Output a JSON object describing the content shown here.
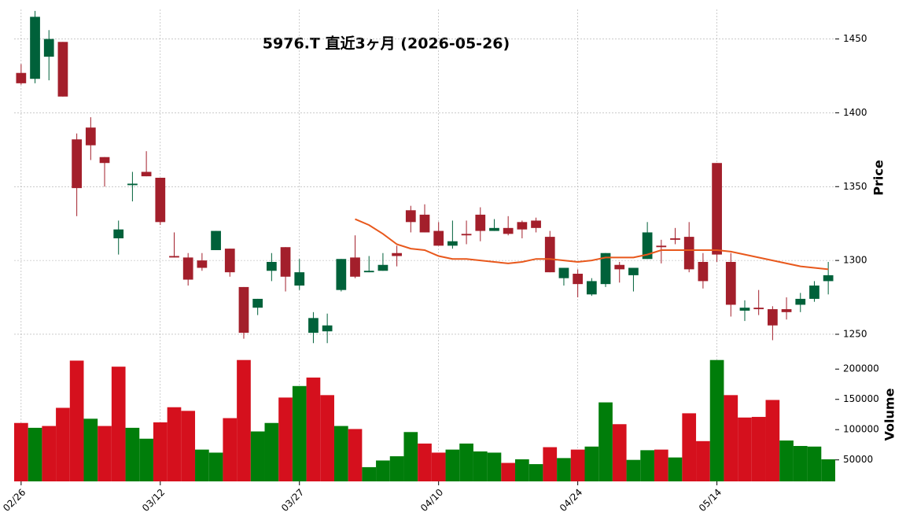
{
  "chart_data": {
    "type": "candlestick",
    "title": "5976.T  直近3ヶ月  (2026-05-26)",
    "y_label": "Price",
    "y2_label": "Volume",
    "categories": [
      "02/26",
      null,
      null,
      null,
      null,
      null,
      null,
      null,
      null,
      null,
      "03/12",
      null,
      null,
      null,
      null,
      null,
      null,
      null,
      null,
      null,
      "03/27",
      null,
      null,
      null,
      null,
      null,
      null,
      null,
      null,
      null,
      "04/10",
      null,
      null,
      null,
      null,
      null,
      null,
      null,
      null,
      null,
      "04/24",
      null,
      null,
      null,
      null,
      null,
      null,
      null,
      null,
      null,
      "05/14",
      null,
      null,
      null,
      null,
      null,
      null,
      null,
      null
    ],
    "open": [
      1427,
      1423,
      1438,
      1448,
      1382,
      1390,
      1370,
      1315,
      1351,
      1360,
      1356,
      1303,
      1302,
      1300,
      1307,
      1308,
      1282,
      1268,
      1293,
      1309,
      1283,
      1251,
      1252,
      1280,
      1302,
      1292,
      1293,
      1305,
      1334,
      1331,
      1320,
      1310,
      1318,
      1331,
      1320,
      1322,
      1326,
      1327,
      1316,
      1288,
      1291,
      1277,
      1284,
      1297,
      1290,
      1301,
      1310,
      1315,
      1316,
      1299,
      1366,
      1299,
      1266,
      1268,
      1267,
      1267,
      1270,
      1274,
      1286
    ],
    "high": [
      1433,
      1469,
      1456,
      1448,
      1386,
      1397,
      1370,
      1327,
      1360,
      1374,
      1356,
      1319,
      1305,
      1305,
      1320,
      1308,
      1282,
      1274,
      1305,
      1309,
      1301,
      1265,
      1264,
      1301,
      1317,
      1303,
      1305,
      1310,
      1337,
      1338,
      1326,
      1327,
      1327,
      1336,
      1328,
      1330,
      1327,
      1329,
      1320,
      1295,
      1294,
      1288,
      1305,
      1299,
      1295,
      1326,
      1314,
      1322,
      1326,
      1305,
      1366,
      1305,
      1273,
      1280,
      1269,
      1275,
      1278,
      1286,
      1299
    ],
    "low": [
      1419,
      1420,
      1422,
      1411,
      1330,
      1368,
      1350,
      1304,
      1340,
      1357,
      1324,
      1302,
      1283,
      1293,
      1307,
      1289,
      1247,
      1263,
      1286,
      1279,
      1280,
      1244,
      1244,
      1279,
      1288,
      1292,
      1293,
      1296,
      1319,
      1319,
      1310,
      1308,
      1311,
      1313,
      1320,
      1317,
      1315,
      1319,
      1292,
      1283,
      1275,
      1276,
      1282,
      1285,
      1279,
      1301,
      1298,
      1311,
      1292,
      1281,
      1299,
      1262,
      1259,
      1263,
      1246,
      1260,
      1265,
      1272,
      1277
    ],
    "close": [
      1420,
      1465,
      1450,
      1411,
      1349,
      1378,
      1366,
      1321,
      1352,
      1357,
      1326,
      1302,
      1287,
      1295,
      1320,
      1292,
      1251,
      1274,
      1299,
      1289,
      1292,
      1261,
      1256,
      1301,
      1289,
      1293,
      1297,
      1303,
      1326,
      1319,
      1310,
      1313,
      1317,
      1320,
      1322,
      1318,
      1321,
      1322,
      1292,
      1295,
      1284,
      1286,
      1305,
      1294,
      1295,
      1319,
      1309,
      1314,
      1294,
      1286,
      1304,
      1270,
      1268,
      1267,
      1256,
      1265,
      1274,
      1283,
      1290
    ],
    "volume": [
      111000,
      103000,
      106000,
      136000,
      214000,
      118000,
      106000,
      204000,
      103000,
      85000,
      112000,
      137000,
      131000,
      67000,
      62000,
      119000,
      215000,
      97000,
      111000,
      153000,
      172000,
      186000,
      157000,
      106000,
      101000,
      38000,
      49000,
      56000,
      96000,
      77000,
      62000,
      67000,
      77000,
      64000,
      62000,
      45000,
      51000,
      43000,
      71000,
      53000,
      67000,
      72000,
      145000,
      109000,
      50000,
      66000,
      67000,
      54000,
      127000,
      81000,
      215000,
      157000,
      120000,
      121000,
      149000,
      82000,
      73000,
      72000,
      51000
    ],
    "moving_average": {
      "color": "#e8581c",
      "values": [
        null,
        null,
        null,
        null,
        null,
        null,
        null,
        null,
        null,
        null,
        null,
        null,
        null,
        null,
        null,
        null,
        null,
        null,
        null,
        null,
        null,
        null,
        null,
        null,
        1328,
        1324,
        1318,
        1311,
        1308,
        1307,
        1303,
        1301,
        1301,
        1300,
        1299,
        1298,
        1299,
        1301,
        1301,
        1300,
        1299,
        1300,
        1302,
        1302,
        1302,
        1304,
        1307,
        1307,
        1307,
        1307,
        1307,
        1306,
        1304,
        1302,
        1300,
        1298,
        1296,
        1295,
        1294
      ]
    },
    "up_color": "#00613a",
    "down_color": "#a31f2b",
    "volume_up_color": "#007d0a",
    "volume_down_color": "#d5101d",
    "ylim": [
      1242,
      1470
    ],
    "yticks": [
      1250,
      1300,
      1350,
      1400,
      1450
    ],
    "y2lim": [
      14500,
      238000
    ],
    "y2ticks": [
      50000,
      100000,
      150000,
      200000
    ],
    "grid": true
  }
}
